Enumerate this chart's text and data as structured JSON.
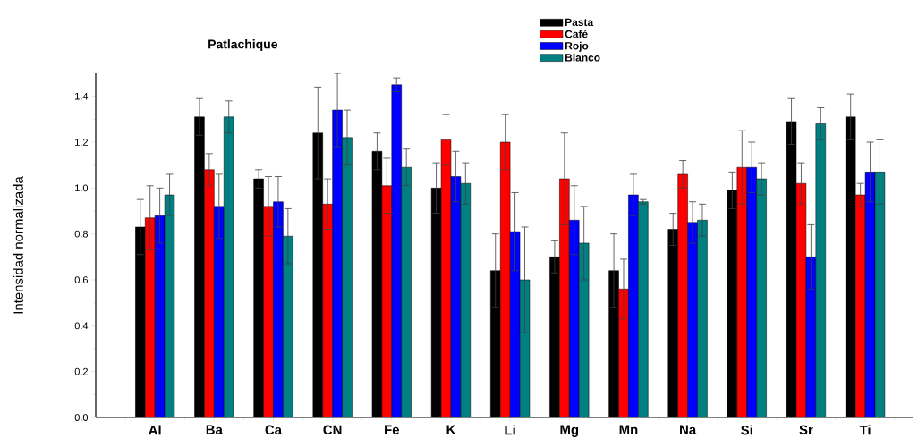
{
  "chart_data": {
    "type": "bar",
    "title": "Patlachique",
    "ylabel": "Intensidad normalizada",
    "categories": [
      "Al",
      "Ba",
      "Ca",
      "CN",
      "Fe",
      "K",
      "Li",
      "Mg",
      "Mn",
      "Na",
      "Si",
      "Sr",
      "Ti"
    ],
    "series": [
      {
        "name": "Pasta",
        "color": "#000000",
        "values": [
          0.83,
          1.31,
          1.04,
          1.24,
          1.16,
          1.0,
          0.64,
          0.7,
          0.64,
          0.82,
          0.99,
          1.29,
          1.31
        ],
        "errors": [
          0.12,
          0.08,
          0.04,
          0.2,
          0.08,
          0.11,
          0.16,
          0.07,
          0.16,
          0.07,
          0.08,
          0.1,
          0.1
        ]
      },
      {
        "name": "Café",
        "color": "#ff0000",
        "values": [
          0.87,
          1.08,
          0.92,
          0.93,
          1.01,
          1.21,
          1.2,
          1.04,
          0.56,
          1.06,
          1.09,
          1.02,
          0.97
        ],
        "errors": [
          0.14,
          0.07,
          0.13,
          0.11,
          0.12,
          0.11,
          0.12,
          0.2,
          0.13,
          0.06,
          0.16,
          0.09,
          0.05
        ]
      },
      {
        "name": "Rojo",
        "color": "#0000ff",
        "values": [
          0.88,
          0.92,
          0.94,
          1.34,
          1.45,
          1.05,
          0.81,
          0.86,
          0.97,
          0.85,
          1.09,
          0.7,
          1.07
        ],
        "errors": [
          0.12,
          0.14,
          0.11,
          0.16,
          0.03,
          0.11,
          0.17,
          0.15,
          0.09,
          0.09,
          0.11,
          0.14,
          0.13
        ]
      },
      {
        "name": "Blanco",
        "color": "#008080",
        "values": [
          0.97,
          1.31,
          0.79,
          1.22,
          1.09,
          1.02,
          0.6,
          0.76,
          0.94,
          0.86,
          1.04,
          1.28,
          1.07
        ],
        "errors": [
          0.09,
          0.07,
          0.12,
          0.12,
          0.08,
          0.09,
          0.23,
          0.16,
          0.01,
          0.07,
          0.07,
          0.07,
          0.14
        ]
      }
    ],
    "ylim": [
      0,
      1.5
    ],
    "yticks": [
      {
        "value": 0,
        "label": "0.0"
      },
      {
        "value": 0.2,
        "label": "0.2"
      },
      {
        "value": 0.4,
        "label": "0.4"
      },
      {
        "value": 0.6,
        "label": "0.6"
      },
      {
        "value": 0.8,
        "label": "0.8"
      },
      {
        "value": 1.0,
        "label": "1.0"
      },
      {
        "value": 1.2,
        "label": "1.2"
      },
      {
        "value": 1.4,
        "label": "1.4"
      }
    ],
    "legend": "top"
  }
}
